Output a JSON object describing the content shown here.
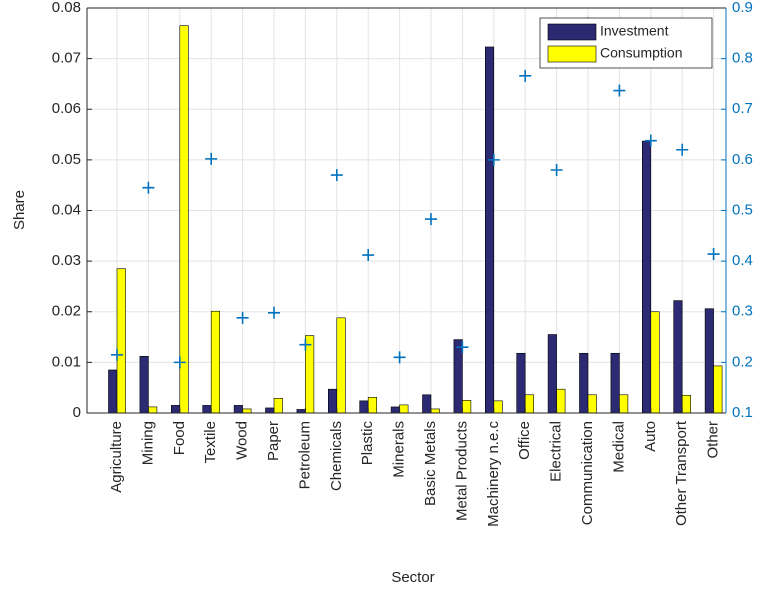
{
  "chart_data": {
    "type": "bar",
    "x_label": "Sector",
    "y_label": "Share",
    "categories": [
      "Agriculture",
      "Mining",
      "Food",
      "Textile",
      "Wood",
      "Paper",
      "Petroleum",
      "Chemicals",
      "Plastic",
      "Minerals",
      "Basic Metals",
      "Metal Products",
      "Machinery n.e.c",
      "Office",
      "Electrical",
      "Communication",
      "Medical",
      "Auto",
      "Other Transport",
      "Other"
    ],
    "series": [
      {
        "name": "Investment",
        "color": "#2b2a72",
        "values": [
          0.0085,
          0.0112,
          0.0015,
          0.0015,
          0.0015,
          0.001,
          0.0007,
          0.0047,
          0.0024,
          0.0012,
          0.0036,
          0.0145,
          0.0723,
          0.0118,
          0.0155,
          0.0118,
          0.0118,
          0.0537,
          0.0222,
          0.0206
        ]
      },
      {
        "name": "Consumption",
        "color": "#ffff00",
        "values": [
          0.0285,
          0.0012,
          0.0765,
          0.0201,
          0.0008,
          0.0029,
          0.0153,
          0.0188,
          0.0031,
          0.0016,
          0.0008,
          0.0025,
          0.0024,
          0.0036,
          0.0047,
          0.0036,
          0.0036,
          0.02,
          0.0035,
          0.0093
        ]
      },
      {
        "type": "scatter",
        "axis": "y2",
        "color": "#0072bd",
        "values": [
          0.215,
          0.545,
          0.2,
          0.602,
          0.288,
          0.298,
          0.235,
          0.57,
          0.412,
          0.21,
          0.483,
          0.23,
          0.6,
          0.766,
          0.58,
          0.87,
          0.737,
          0.638,
          0.62,
          0.414
        ]
      }
    ],
    "ylim": [
      0,
      0.08
    ],
    "yticks": [
      0,
      0.01,
      0.02,
      0.03,
      0.04,
      0.05,
      0.06,
      0.07,
      0.08
    ],
    "y2lim": [
      0.1,
      0.9
    ],
    "y2ticks": [
      0.1,
      0.2,
      0.3,
      0.4,
      0.5,
      0.6,
      0.7,
      0.8,
      0.9
    ],
    "grid": true,
    "legend": "upper right"
  }
}
